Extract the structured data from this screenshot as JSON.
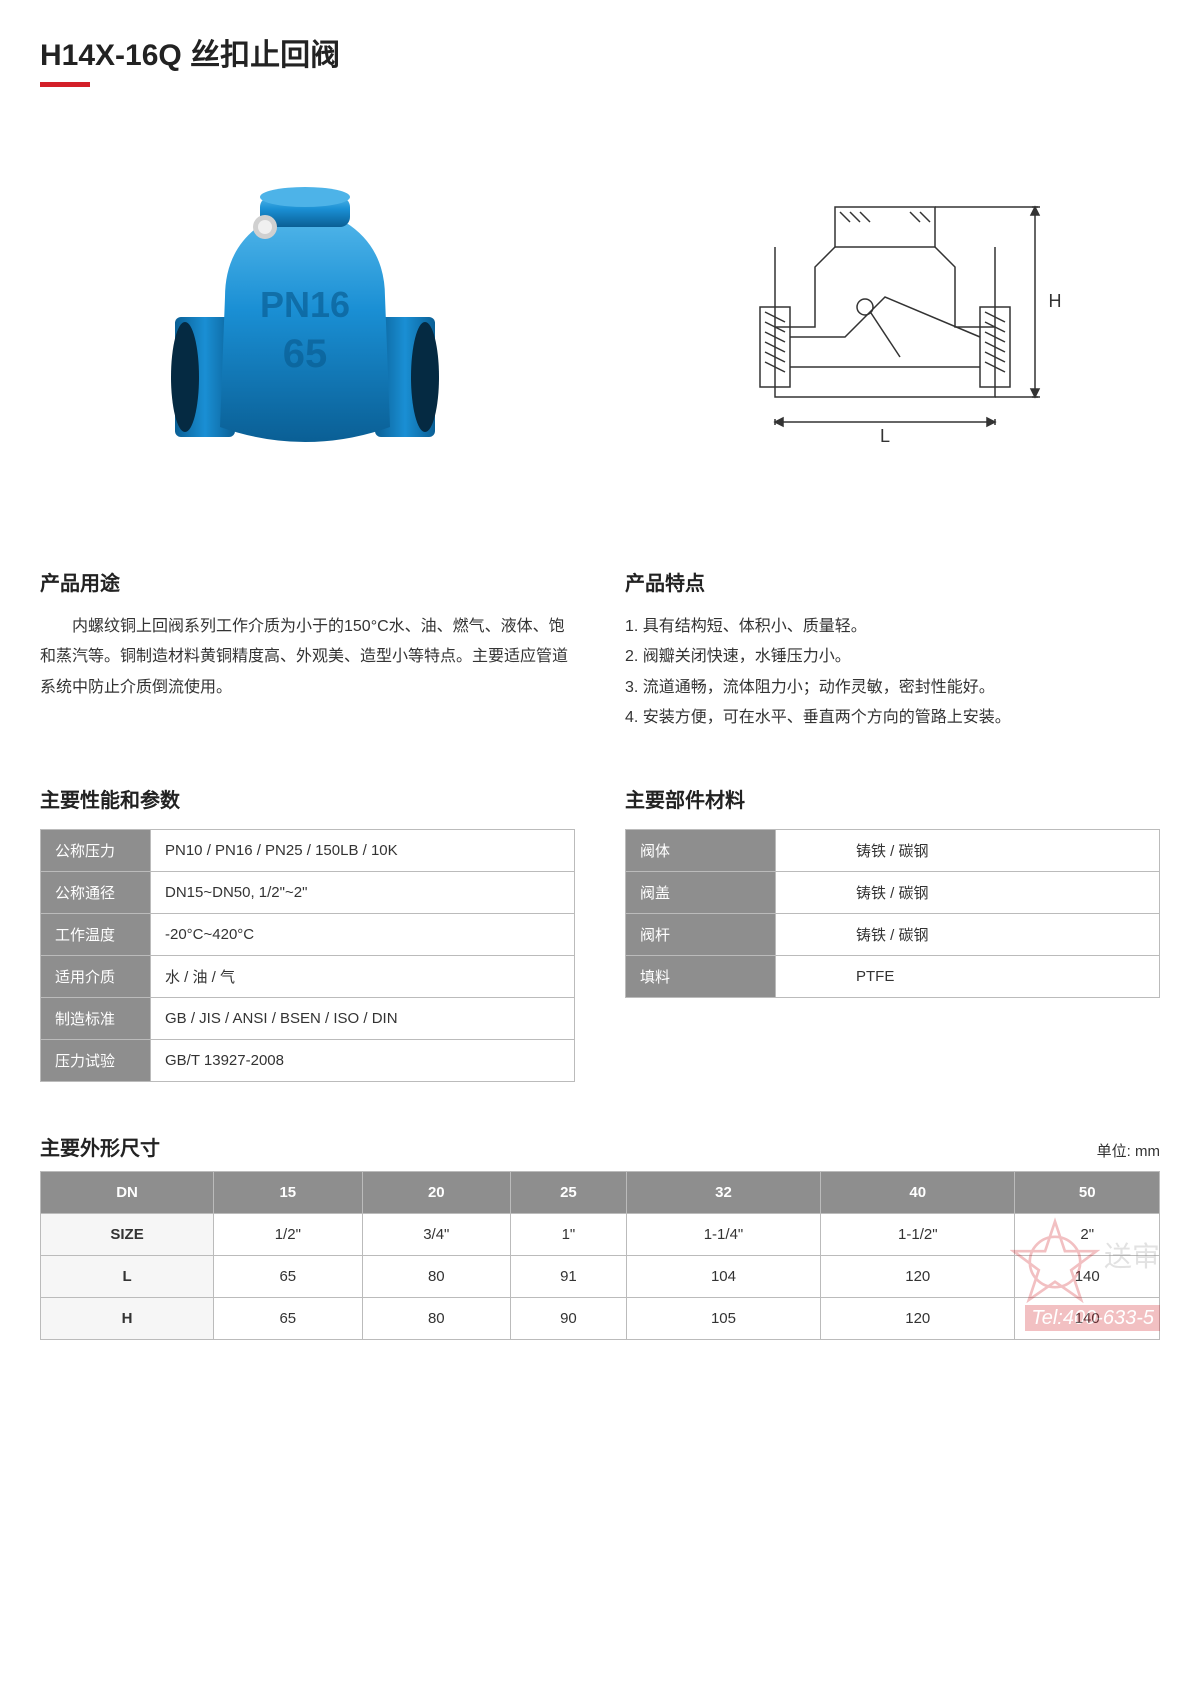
{
  "header": {
    "title": "H14X-16Q 丝扣止回阀",
    "accent_color": "#d32029"
  },
  "photo": {
    "body_color": "#1a8fd4",
    "shade_color": "#0a5f95",
    "highlight_color": "#4db3e8",
    "text1": "PN16",
    "text2": "65"
  },
  "drawing": {
    "stroke": "#333333",
    "label_L": "L",
    "label_H": "H"
  },
  "usage": {
    "title": "产品用途",
    "text": "内螺纹铜上回阀系列工作介质为小于的150°C水、油、燃气、液体、饱和蒸汽等。铜制造材料黄铜精度高、外观美、造型小等特点。主要适应管道系统中防止介质倒流使用。"
  },
  "features": {
    "title": "产品特点",
    "items": [
      "1. 具有结构短、体积小、质量轻。",
      "2. 阀瓣关闭快速，水锤压力小。",
      "3. 流道通畅，流体阻力小；动作灵敏，密封性能好。",
      "4. 安装方便，可在水平、垂直两个方向的管路上安装。"
    ]
  },
  "performance": {
    "title": "主要性能和参数",
    "rows": [
      {
        "label": "公称压力",
        "value": "PN10 / PN16 / PN25 / 150LB / 10K"
      },
      {
        "label": "公称通径",
        "value": "DN15~DN50, 1/2\"~2\""
      },
      {
        "label": "工作温度",
        "value": "-20°C~420°C"
      },
      {
        "label": "适用介质",
        "value": "水 / 油 / 气"
      },
      {
        "label": "制造标准",
        "value": "GB / JIS / ANSI / BSEN / ISO / DIN"
      },
      {
        "label": "压力试验",
        "value": "GB/T 13927-2008"
      }
    ]
  },
  "materials": {
    "title": "主要部件材料",
    "rows": [
      {
        "label": "阀体",
        "value": "铸铁 / 碳钢"
      },
      {
        "label": "阀盖",
        "value": "铸铁 / 碳钢"
      },
      {
        "label": "阀杆",
        "value": "铸铁 / 碳钢"
      },
      {
        "label": "填料",
        "value": "PTFE"
      }
    ]
  },
  "dimensions": {
    "title": "主要外形尺寸",
    "unit": "单位: mm",
    "header_bg": "#8e8e8e",
    "columns": [
      "DN",
      "15",
      "20",
      "25",
      "32",
      "40",
      "50"
    ],
    "rows": [
      {
        "label": "SIZE",
        "cells": [
          "1/2\"",
          "3/4\"",
          "1\"",
          "1-1/4\"",
          "1-1/2\"",
          "2\""
        ]
      },
      {
        "label": "L",
        "cells": [
          "65",
          "80",
          "91",
          "104",
          "120",
          "140"
        ]
      },
      {
        "label": "H",
        "cells": [
          "65",
          "80",
          "90",
          "105",
          "120",
          "140"
        ]
      }
    ]
  },
  "watermark": {
    "text": "送审",
    "tel": "Tel:400-633-5"
  }
}
